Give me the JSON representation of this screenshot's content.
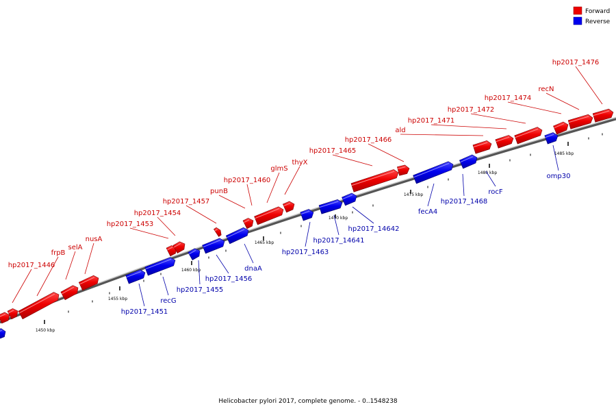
{
  "legend": {
    "forward_label": "Forward",
    "reverse_label": "Reverse",
    "forward_color": "#ff0000",
    "reverse_color": "#0000ff"
  },
  "caption": "Helicobacter pylori 2017, complete genome. - 0..1548238",
  "axis": {
    "tick_labels": [
      "1450 kbp",
      "1455 kbp",
      "1460 kbp",
      "1465 kbp",
      "1470 kbp",
      "1475 kbp",
      "1480 kbp",
      "1485 kbp"
    ]
  },
  "forward_genes": [
    {
      "name": "hp2017_1446"
    },
    {
      "name": "frpB"
    },
    {
      "name": "selA"
    },
    {
      "name": "nusA"
    },
    {
      "name": "hp2017_1453"
    },
    {
      "name": "hp2017_1454"
    },
    {
      "name": "hp2017_1457"
    },
    {
      "name": "punB"
    },
    {
      "name": "hp2017_1460"
    },
    {
      "name": "glmS"
    },
    {
      "name": "thyX"
    },
    {
      "name": "hp2017_1465"
    },
    {
      "name": "hp2017_1466"
    },
    {
      "name": "ald"
    },
    {
      "name": "hp2017_1471"
    },
    {
      "name": "hp2017_1472"
    },
    {
      "name": "hp2017_1474"
    },
    {
      "name": "recN"
    },
    {
      "name": "hp2017_1476"
    }
  ],
  "reverse_genes": [
    {
      "name": "hp2017_1451"
    },
    {
      "name": "recG"
    },
    {
      "name": "hp2017_1455"
    },
    {
      "name": "hp2017_1456"
    },
    {
      "name": "dnaA"
    },
    {
      "name": "hp2017_1463"
    },
    {
      "name": "hp2017_14641"
    },
    {
      "name": "hp2017_14642"
    },
    {
      "name": "fecA4"
    },
    {
      "name": "hp2017_1468"
    },
    {
      "name": "rocF"
    },
    {
      "name": "omp30"
    }
  ]
}
